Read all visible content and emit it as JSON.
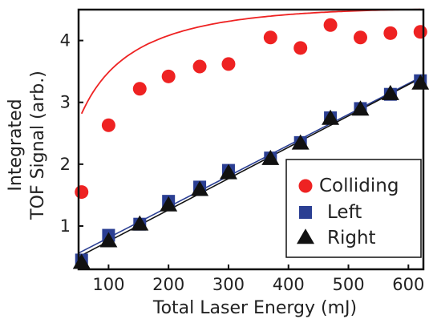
{
  "chart_data": {
    "type": "scatter",
    "title": "",
    "xlabel": "Total Laser Energy (mJ)",
    "ylabel_lines": [
      "Integrated",
      "TOF Signal (arb.)"
    ],
    "xlim": [
      50,
      625
    ],
    "ylim": [
      0.3,
      4.5
    ],
    "xticks": [
      100,
      200,
      300,
      400,
      500,
      600
    ],
    "yticks": [
      1,
      2,
      3,
      4
    ],
    "grid": false,
    "legend_position": "bottom-right",
    "series": [
      {
        "name": "Colliding",
        "marker": "circle",
        "color": "#ee2222",
        "x": [
          55,
          100,
          152,
          200,
          252,
          300,
          370,
          420,
          470,
          520,
          570,
          620
        ],
        "y": [
          1.55,
          2.63,
          3.22,
          3.42,
          3.58,
          3.62,
          4.05,
          3.88,
          4.25,
          4.05,
          4.12,
          4.14
        ],
        "fit_color": "#ee2222"
      },
      {
        "name": "Left",
        "marker": "square",
        "color": "#2b3f93",
        "x": [
          55,
          100,
          152,
          200,
          252,
          300,
          370,
          420,
          470,
          520,
          570,
          620
        ],
        "y": [
          0.45,
          0.85,
          1.03,
          1.4,
          1.63,
          1.9,
          2.1,
          2.35,
          2.75,
          2.9,
          3.13,
          3.35
        ],
        "fit_color": "#2b3f93"
      },
      {
        "name": "Right",
        "marker": "triangle",
        "color": "#111111",
        "x": [
          55,
          100,
          152,
          200,
          252,
          300,
          370,
          420,
          470,
          520,
          570,
          620
        ],
        "y": [
          0.4,
          0.75,
          1.02,
          1.33,
          1.58,
          1.85,
          2.08,
          2.33,
          2.73,
          2.88,
          3.13,
          3.3
        ],
        "fit_color": "#111111"
      }
    ]
  }
}
